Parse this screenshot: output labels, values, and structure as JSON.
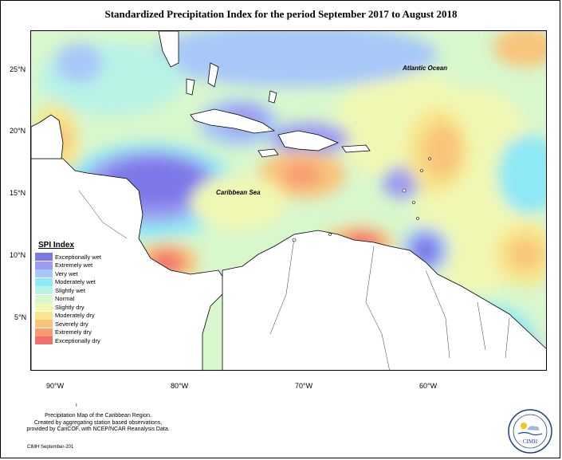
{
  "title": "Standardized Precipitation Index for the period September 2017 to August 2018",
  "lat_labels": [
    "25°N",
    "20°N",
    "15°N",
    "10°N",
    "5°N"
  ],
  "lon_labels": [
    "90°W",
    "80°W",
    "70°W",
    "60°W"
  ],
  "ocean_labels": {
    "atlantic": "Atlantic Ocean",
    "caribbean": "Caribbean Sea"
  },
  "legend": {
    "title": "SPI Index",
    "items": [
      {
        "label": "Exceptionally wet",
        "color": "#7b78e8"
      },
      {
        "label": "Extremely wet",
        "color": "#9c9cf0"
      },
      {
        "label": "Very wet",
        "color": "#a8c8f8"
      },
      {
        "label": "Moderately wet",
        "color": "#8ee8f5"
      },
      {
        "label": "Slightly wet",
        "color": "#b8f3e6"
      },
      {
        "label": "Normal",
        "color": "#d8f7cd"
      },
      {
        "label": "Slightly dry",
        "color": "#f0f8b4"
      },
      {
        "label": "Moderately dry",
        "color": "#f8e68c"
      },
      {
        "label": "Severely dry",
        "color": "#f8c47a"
      },
      {
        "label": "Extremely dry",
        "color": "#f89a72"
      },
      {
        "label": "Exceptionally dry",
        "color": "#f26f6f"
      }
    ]
  },
  "credits": [
    "Precipitation Map of the Caribbean Region.",
    "Created by aggregating station based observations,",
    "provided by CariCOF, with NCEP/NCAR Reanalysis Data."
  ],
  "stamp": "CIMH September-201",
  "marker": "I",
  "logo_text": "CIMH"
}
